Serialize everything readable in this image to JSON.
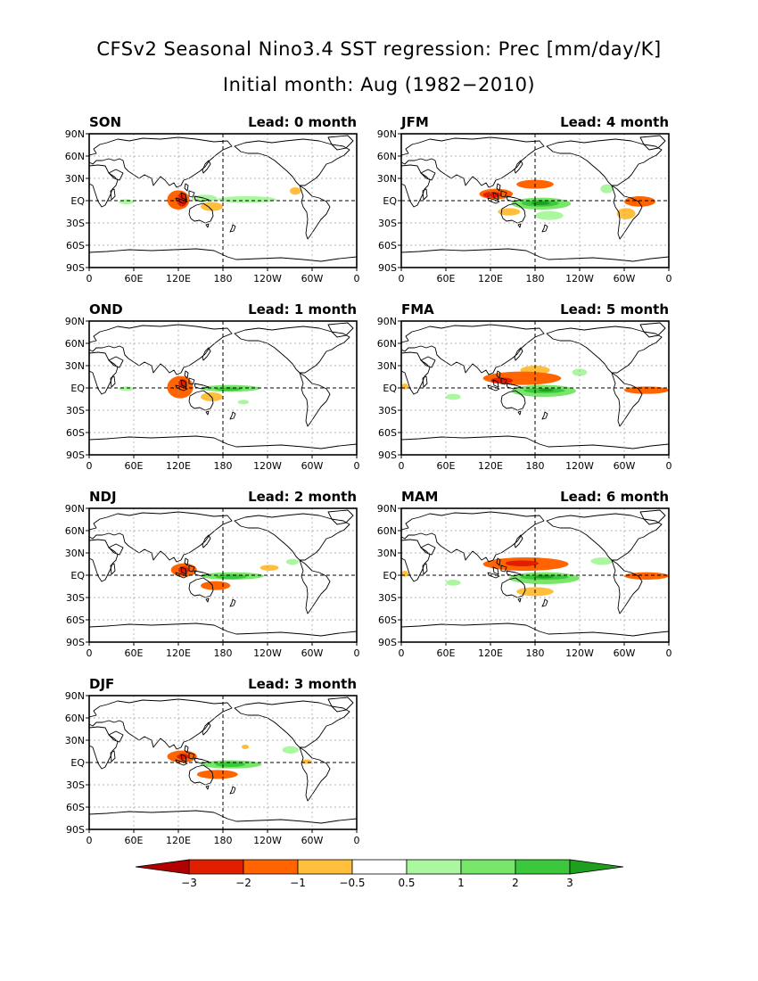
{
  "title": "CFSv2 Seasonal Nino3.4 SST regression: Prec [mm/day/K]",
  "subtitle": "Initial month: Aug (1982−2010)",
  "colors": {
    "neg_lt_m3": "#b00000",
    "neg_m3_m2": "#e01e00",
    "neg_m2_m1": "#ff6400",
    "neg_m1_m05": "#ffbe3c",
    "pos_05_1": "#aaf79f",
    "pos_1_2": "#78e66a",
    "pos_2_3": "#3cc83c",
    "pos_gt_3": "#1e9f1e",
    "coast": "#000000"
  },
  "chart_data": {
    "type": "heatmap",
    "variable": "Prec",
    "units": "mm/day/K",
    "xlim": [
      0,
      360
    ],
    "ylim": [
      -90,
      90
    ],
    "x_ticks": [
      "0",
      "60E",
      "120E",
      "180",
      "120W",
      "60W",
      "0"
    ],
    "y_ticks": [
      "90N",
      "60N",
      "30N",
      "EQ",
      "30S",
      "60S",
      "90S"
    ],
    "grid": "dashed gridlines every 30 degrees; bold dashed lines at EQ and 180",
    "colorbar": {
      "levels": [
        "−3",
        "−2",
        "−1",
        "−0.5",
        "0.5",
        "1",
        "2",
        "3"
      ],
      "bins": [
        {
          "range": "< -3",
          "color": "#b00000"
        },
        {
          "range": "-3 to -2",
          "color": "#e01e00"
        },
        {
          "range": "-2 to -1",
          "color": "#ff6400"
        },
        {
          "range": "-1 to -0.5",
          "color": "#ffbe3c"
        },
        {
          "range": "-0.5 to 0.5",
          "color": "#ffffff"
        },
        {
          "range": "0.5 to 1",
          "color": "#aaf79f"
        },
        {
          "range": "1 to 2",
          "color": "#78e66a"
        },
        {
          "range": "2 to 3",
          "color": "#3cc83c"
        },
        {
          "range": "> 3",
          "color": "#1e9f1e"
        }
      ]
    },
    "panels": [
      {
        "season": "SON",
        "lead": "Lead: 0 month",
        "lead_months": 0,
        "regions": [
          {
            "lon": [
              138,
              172
            ],
            "lat": [
              -2,
              8
            ],
            "value": 0.8
          },
          {
            "lon": [
              172,
              252
            ],
            "lat": [
              -3,
              6
            ],
            "value": 0.7
          },
          {
            "lon": [
              105,
              135
            ],
            "lat": [
              -12,
              14
            ],
            "value": -1.5
          },
          {
            "lon": [
              118,
              132
            ],
            "lat": [
              -8,
              10
            ],
            "value": -2.3
          },
          {
            "lon": [
              150,
              180
            ],
            "lat": [
              -14,
              -2
            ],
            "value": -0.8
          },
          {
            "lon": [
              270,
              285
            ],
            "lat": [
              8,
              18
            ],
            "value": -0.7
          },
          {
            "lon": [
              40,
              60
            ],
            "lat": [
              -5,
              2
            ],
            "value": 0.6
          }
        ]
      },
      {
        "season": "JFM",
        "lead": "Lead: 4 month",
        "lead_months": 4,
        "regions": [
          {
            "lon": [
              148,
              228
            ],
            "lat": [
              -12,
              4
            ],
            "value": 1.5
          },
          {
            "lon": [
              162,
              212
            ],
            "lat": [
              -8,
              1
            ],
            "value": 2.5
          },
          {
            "lon": [
              175,
              200
            ],
            "lat": [
              -6,
              -1
            ],
            "value": 3.2
          },
          {
            "lon": [
              180,
              218
            ],
            "lat": [
              -26,
              -14
            ],
            "value": 0.8
          },
          {
            "lon": [
              105,
              150
            ],
            "lat": [
              2,
              16
            ],
            "value": -1.4
          },
          {
            "lon": [
              110,
              135
            ],
            "lat": [
              4,
              12
            ],
            "value": -2.3
          },
          {
            "lon": [
              155,
              205
            ],
            "lat": [
              16,
              28
            ],
            "value": -1.0
          },
          {
            "lon": [
              130,
              160
            ],
            "lat": [
              -20,
              -10
            ],
            "value": -0.8
          },
          {
            "lon": [
              300,
              342
            ],
            "lat": [
              -8,
              6
            ],
            "value": -1.3
          },
          {
            "lon": [
              290,
              315
            ],
            "lat": [
              -25,
              -10
            ],
            "value": -0.7
          },
          {
            "lon": [
              268,
              285
            ],
            "lat": [
              10,
              22
            ],
            "value": 0.7
          }
        ]
      },
      {
        "season": "OND",
        "lead": "Lead: 1 month",
        "lead_months": 1,
        "regions": [
          {
            "lon": [
              150,
              230
            ],
            "lat": [
              -5,
              4
            ],
            "value": 1.2
          },
          {
            "lon": [
              170,
              205
            ],
            "lat": [
              -4,
              1
            ],
            "value": 2.2
          },
          {
            "lon": [
              105,
              140
            ],
            "lat": [
              -14,
              16
            ],
            "value": -1.5
          },
          {
            "lon": [
              120,
              132
            ],
            "lat": [
              0,
              12
            ],
            "value": -2.5
          },
          {
            "lon": [
              150,
              180
            ],
            "lat": [
              -18,
              -6
            ],
            "value": -0.8
          },
          {
            "lon": [
              40,
              60
            ],
            "lat": [
              -4,
              2
            ],
            "value": 0.6
          },
          {
            "lon": [
              200,
              215
            ],
            "lat": [
              -22,
              -16
            ],
            "value": 0.7
          }
        ]
      },
      {
        "season": "FMA",
        "lead": "Lead: 5 month",
        "lead_months": 5,
        "regions": [
          {
            "lon": [
              148,
              235
            ],
            "lat": [
              -12,
              4
            ],
            "value": 1.5
          },
          {
            "lon": [
              165,
              220
            ],
            "lat": [
              -7,
              0
            ],
            "value": 2.6
          },
          {
            "lon": [
              185,
              205
            ],
            "lat": [
              -5,
              -1
            ],
            "value": 3.3
          },
          {
            "lon": [
              110,
              215
            ],
            "lat": [
              4,
              22
            ],
            "value": -1.3
          },
          {
            "lon": [
              120,
              150
            ],
            "lat": [
              6,
              14
            ],
            "value": -2.4
          },
          {
            "lon": [
              160,
              200
            ],
            "lat": [
              18,
              30
            ],
            "value": -0.8
          },
          {
            "lon": [
              300,
              360
            ],
            "lat": [
              -8,
              2
            ],
            "value": -1.0
          },
          {
            "lon": [
              0,
              10
            ],
            "lat": [
              -2,
              6
            ],
            "value": -0.8
          },
          {
            "lon": [
              230,
              250
            ],
            "lat": [
              16,
              26
            ],
            "value": 0.8
          },
          {
            "lon": [
              60,
              80
            ],
            "lat": [
              -16,
              -8
            ],
            "value": 0.6
          }
        ]
      },
      {
        "season": "NDJ",
        "lead": "Lead: 2 month",
        "lead_months": 2,
        "regions": [
          {
            "lon": [
              150,
              235
            ],
            "lat": [
              -6,
              4
            ],
            "value": 1.5
          },
          {
            "lon": [
              170,
              212
            ],
            "lat": [
              -5,
              1
            ],
            "value": 2.5
          },
          {
            "lon": [
              110,
              145
            ],
            "lat": [
              -2,
              16
            ],
            "value": -1.6
          },
          {
            "lon": [
              120,
              134
            ],
            "lat": [
              2,
              12
            ],
            "value": -2.4
          },
          {
            "lon": [
              150,
              190
            ],
            "lat": [
              -20,
              -8
            ],
            "value": -1.0
          },
          {
            "lon": [
              230,
              255
            ],
            "lat": [
              6,
              14
            ],
            "value": -0.7
          },
          {
            "lon": [
              265,
              282
            ],
            "lat": [
              14,
              22
            ],
            "value": 0.7
          }
        ]
      },
      {
        "season": "MAM",
        "lead": "Lead: 6 month",
        "lead_months": 6,
        "regions": [
          {
            "lon": [
              145,
              240
            ],
            "lat": [
              -12,
              4
            ],
            "value": 1.5
          },
          {
            "lon": [
              160,
              225
            ],
            "lat": [
              -6,
              1
            ],
            "value": 2.6
          },
          {
            "lon": [
              180,
              205
            ],
            "lat": [
              -4,
              0
            ],
            "value": 3.3
          },
          {
            "lon": [
              110,
              225
            ],
            "lat": [
              6,
              24
            ],
            "value": -1.3
          },
          {
            "lon": [
              140,
              185
            ],
            "lat": [
              12,
              20
            ],
            "value": -2.4
          },
          {
            "lon": [
              155,
              205
            ],
            "lat": [
              -28,
              -16
            ],
            "value": -0.8
          },
          {
            "lon": [
              300,
              360
            ],
            "lat": [
              -6,
              4
            ],
            "value": -1.1
          },
          {
            "lon": [
              0,
              10
            ],
            "lat": [
              -2,
              6
            ],
            "value": -0.8
          },
          {
            "lon": [
              255,
              285
            ],
            "lat": [
              14,
              24
            ],
            "value": 0.7
          },
          {
            "lon": [
              60,
              80
            ],
            "lat": [
              -14,
              -6
            ],
            "value": 0.6
          }
        ]
      },
      {
        "season": "DJF",
        "lead": "Lead: 3 month",
        "lead_months": 3,
        "regions": [
          {
            "lon": [
              150,
              232
            ],
            "lat": [
              -8,
              3
            ],
            "value": 1.5
          },
          {
            "lon": [
              170,
              210
            ],
            "lat": [
              -6,
              1
            ],
            "value": 2.6
          },
          {
            "lon": [
              105,
              145
            ],
            "lat": [
              0,
              16
            ],
            "value": -1.6
          },
          {
            "lon": [
              118,
              134
            ],
            "lat": [
              4,
              12
            ],
            "value": -2.4
          },
          {
            "lon": [
              145,
              200
            ],
            "lat": [
              -22,
              -10
            ],
            "value": -1.1
          },
          {
            "lon": [
              205,
              215
            ],
            "lat": [
              18,
              24
            ],
            "value": -0.8
          },
          {
            "lon": [
              260,
              282
            ],
            "lat": [
              12,
              22
            ],
            "value": 0.8
          },
          {
            "lon": [
              285,
              300
            ],
            "lat": [
              -2,
              4
            ],
            "value": -0.8
          }
        ]
      }
    ]
  }
}
